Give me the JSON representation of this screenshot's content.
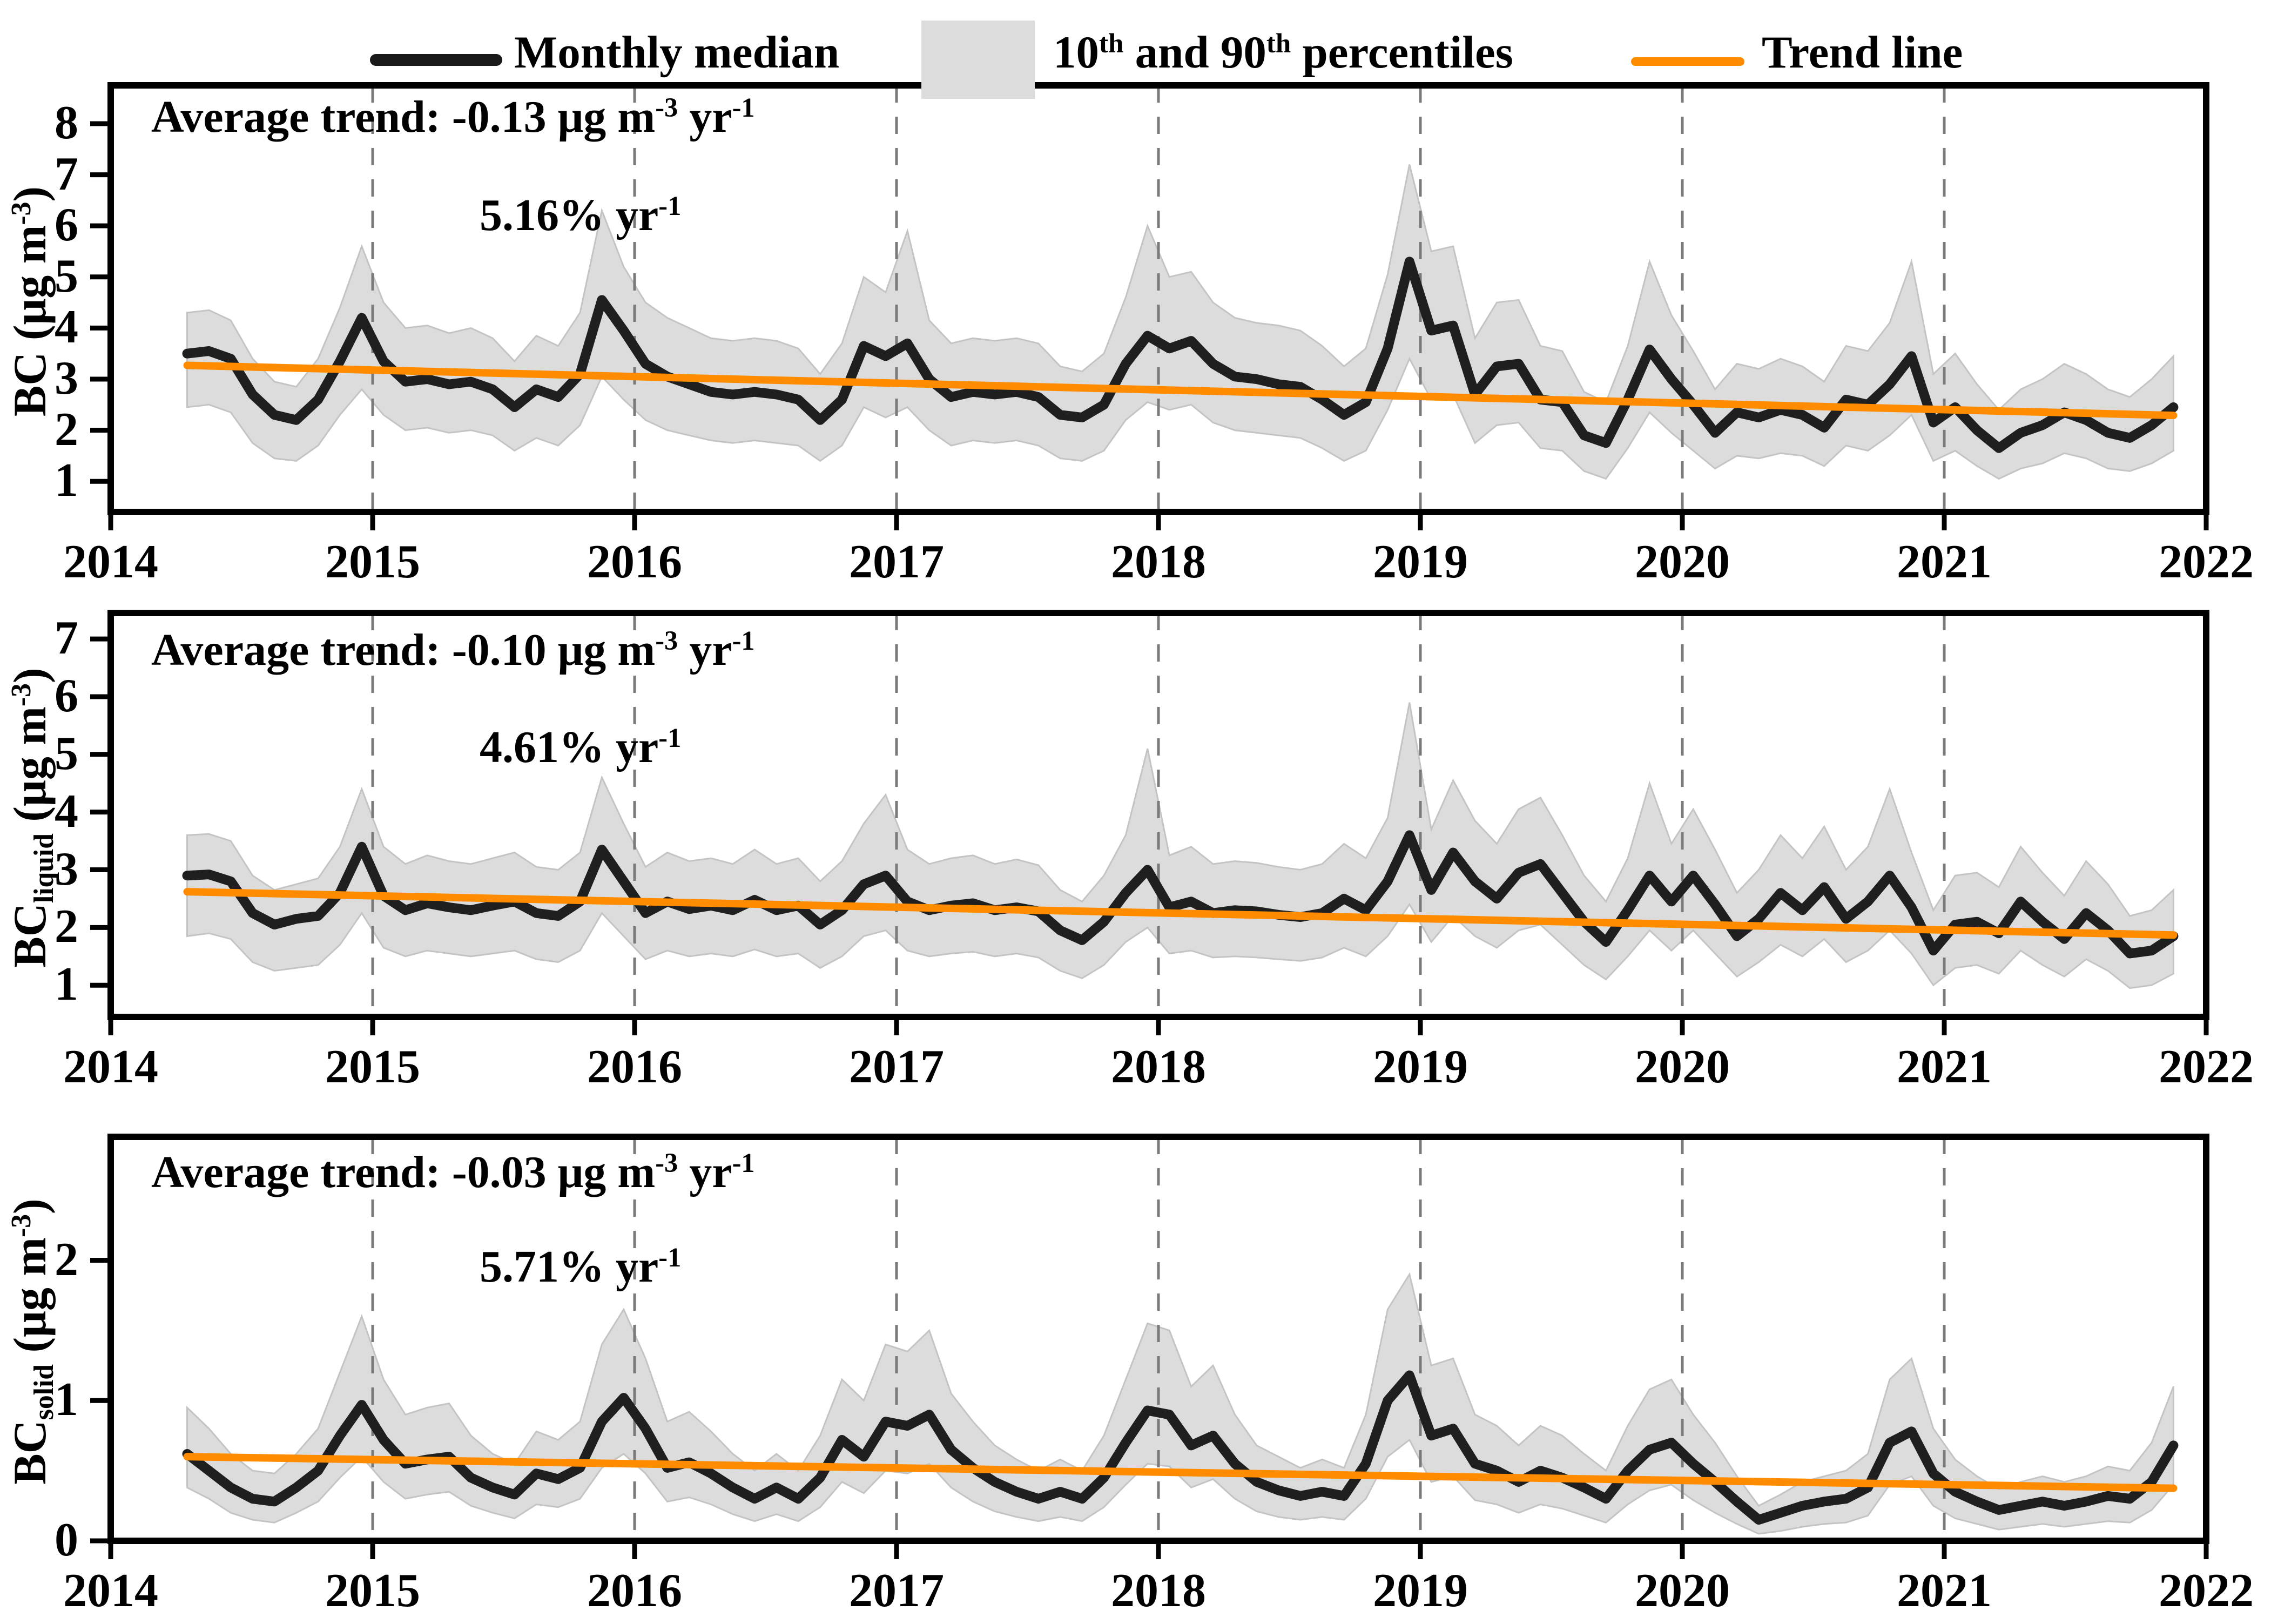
{
  "colors": {
    "median": "#1f1f1f",
    "band": "#dcdcdc",
    "band_edge": "#c4c4c4",
    "trend": "#ff8c00",
    "grid": "#7a7a7a",
    "axis": "#000000"
  },
  "legend": {
    "items": [
      {
        "name": "monthly-median",
        "swatch": "line",
        "color": "#1a1a1a",
        "label_parts": [
          [
            "t",
            "Monthly median"
          ]
        ]
      },
      {
        "name": "percentiles-band",
        "swatch": "box",
        "color": "#dcdcdc",
        "label_parts": [
          [
            "t",
            "10"
          ],
          [
            "sup",
            "th"
          ],
          [
            "t",
            " and 90"
          ],
          [
            "sup",
            "th"
          ],
          [
            "t",
            " percentiles"
          ]
        ]
      },
      {
        "name": "trend-line",
        "swatch": "line",
        "color": "#ff8c00",
        "label_parts": [
          [
            "t",
            "Trend line"
          ]
        ]
      }
    ]
  },
  "chart_data": [
    {
      "type": "line",
      "name": "BC",
      "ylabel_parts": [
        [
          "t",
          "BC ("
        ],
        [
          "t",
          "μg m"
        ],
        [
          "sup",
          "-3"
        ],
        [
          "t",
          ")"
        ]
      ],
      "trend_annotation_parts": [
        [
          "t",
          "Average trend: -0.13 μg m"
        ],
        [
          "sup",
          "-3"
        ],
        [
          "t",
          " yr"
        ],
        [
          "sup",
          "-1"
        ]
      ],
      "percent_annotation_parts": [
        [
          "t",
          "5.16% yr"
        ],
        [
          "sup",
          "-1"
        ]
      ],
      "xlim": [
        2014,
        2022
      ],
      "ylim": [
        0.4,
        8.75
      ],
      "yticks": [
        1,
        2,
        3,
        4,
        5,
        6,
        7,
        8
      ],
      "xticks": [
        2014,
        2015,
        2016,
        2017,
        2018,
        2019,
        2020,
        2021,
        2022
      ],
      "xgrid": [
        2015,
        2016,
        2017,
        2018,
        2019,
        2020,
        2021
      ],
      "x_start": 2014.2917,
      "x_step": 0.08333,
      "median": [
        3.5,
        3.55,
        3.4,
        2.7,
        2.3,
        2.2,
        2.6,
        3.35,
        4.2,
        3.35,
        2.95,
        3.0,
        2.9,
        2.95,
        2.8,
        2.45,
        2.8,
        2.65,
        3.1,
        4.55,
        3.95,
        3.3,
        3.05,
        2.9,
        2.75,
        2.7,
        2.75,
        2.7,
        2.6,
        2.2,
        2.6,
        3.65,
        3.45,
        3.7,
        3.0,
        2.65,
        2.75,
        2.7,
        2.75,
        2.65,
        2.3,
        2.25,
        2.5,
        3.3,
        3.85,
        3.6,
        3.75,
        3.3,
        3.05,
        3.0,
        2.9,
        2.85,
        2.6,
        2.3,
        2.55,
        3.6,
        5.3,
        3.95,
        4.05,
        2.7,
        3.25,
        3.3,
        2.6,
        2.55,
        1.9,
        1.75,
        2.6,
        3.58,
        3.0,
        2.5,
        1.95,
        2.35,
        2.25,
        2.4,
        2.3,
        2.05,
        2.6,
        2.5,
        2.9,
        3.45,
        2.15,
        2.45,
        2.0,
        1.65,
        1.95,
        2.1,
        2.35,
        2.2,
        1.95,
        1.85,
        2.1,
        2.45
      ],
      "p10": [
        2.45,
        2.5,
        2.35,
        1.75,
        1.45,
        1.4,
        1.7,
        2.3,
        2.8,
        2.3,
        2.0,
        2.05,
        1.95,
        2.0,
        1.9,
        1.6,
        1.85,
        1.7,
        2.1,
        3.05,
        2.6,
        2.2,
        2.0,
        1.9,
        1.8,
        1.75,
        1.8,
        1.75,
        1.7,
        1.4,
        1.7,
        2.45,
        2.25,
        2.45,
        2.0,
        1.7,
        1.8,
        1.75,
        1.8,
        1.7,
        1.45,
        1.4,
        1.6,
        2.2,
        2.55,
        2.4,
        2.5,
        2.15,
        2.0,
        1.95,
        1.9,
        1.85,
        1.65,
        1.4,
        1.6,
        2.4,
        3.4,
        2.6,
        2.7,
        1.75,
        2.1,
        2.15,
        1.65,
        1.6,
        1.2,
        1.05,
        1.65,
        2.35,
        1.95,
        1.6,
        1.25,
        1.5,
        1.45,
        1.55,
        1.5,
        1.3,
        1.7,
        1.6,
        1.9,
        2.3,
        1.4,
        1.6,
        1.3,
        1.05,
        1.25,
        1.35,
        1.55,
        1.45,
        1.25,
        1.2,
        1.35,
        1.6
      ],
      "p90": [
        4.3,
        4.35,
        4.15,
        3.4,
        2.95,
        2.85,
        3.4,
        4.4,
        5.6,
        4.5,
        4.0,
        4.05,
        3.9,
        4.0,
        3.8,
        3.35,
        3.85,
        3.65,
        4.3,
        6.3,
        5.2,
        4.5,
        4.2,
        4.0,
        3.8,
        3.75,
        3.8,
        3.75,
        3.6,
        3.1,
        3.7,
        5.0,
        4.7,
        5.9,
        4.15,
        3.7,
        3.8,
        3.75,
        3.8,
        3.7,
        3.25,
        3.15,
        3.5,
        4.6,
        6.0,
        5.0,
        5.1,
        4.5,
        4.2,
        4.1,
        4.05,
        3.95,
        3.65,
        3.25,
        3.6,
        5.05,
        7.2,
        5.5,
        5.6,
        3.8,
        4.5,
        4.55,
        3.65,
        3.55,
        2.75,
        2.55,
        3.65,
        5.3,
        4.25,
        3.55,
        2.8,
        3.3,
        3.2,
        3.4,
        3.25,
        2.95,
        3.65,
        3.55,
        4.1,
        5.3,
        3.1,
        3.5,
        2.9,
        2.4,
        2.8,
        3.0,
        3.3,
        3.1,
        2.8,
        2.65,
        3.0,
        3.45
      ],
      "trend": {
        "x1": 2014.2917,
        "v1": 3.27,
        "x2": 2021.875,
        "v2": 2.29
      }
    },
    {
      "type": "line",
      "name": "BC_liquid",
      "ylabel_parts": [
        [
          "t",
          "BC"
        ],
        [
          "sub",
          "liquid"
        ],
        [
          "t",
          " ("
        ],
        [
          "t",
          "μg m"
        ],
        [
          "sup",
          "-3"
        ],
        [
          "t",
          ")"
        ]
      ],
      "trend_annotation_parts": [
        [
          "t",
          "Average trend: -0.10 μg m"
        ],
        [
          "sup",
          "-3"
        ],
        [
          "t",
          " yr"
        ],
        [
          "sup",
          "-1"
        ]
      ],
      "percent_annotation_parts": [
        [
          "t",
          "4.61% yr"
        ],
        [
          "sup",
          "-1"
        ]
      ],
      "xlim": [
        2014,
        2022
      ],
      "ylim": [
        0.45,
        7.45
      ],
      "yticks": [
        1,
        2,
        3,
        4,
        5,
        6,
        7
      ],
      "xticks": [
        2014,
        2015,
        2016,
        2017,
        2018,
        2019,
        2020,
        2021,
        2022
      ],
      "xgrid": [
        2015,
        2016,
        2017,
        2018,
        2019,
        2020,
        2021
      ],
      "x_start": 2014.2917,
      "x_step": 0.08333,
      "median": [
        2.9,
        2.92,
        2.8,
        2.25,
        2.05,
        2.15,
        2.2,
        2.6,
        3.4,
        2.55,
        2.3,
        2.42,
        2.35,
        2.3,
        2.38,
        2.45,
        2.25,
        2.2,
        2.45,
        3.35,
        2.8,
        2.25,
        2.45,
        2.32,
        2.38,
        2.3,
        2.48,
        2.3,
        2.38,
        2.05,
        2.3,
        2.75,
        2.9,
        2.45,
        2.3,
        2.38,
        2.42,
        2.3,
        2.35,
        2.28,
        1.95,
        1.78,
        2.1,
        2.6,
        3.0,
        2.35,
        2.45,
        2.25,
        2.3,
        2.28,
        2.22,
        2.18,
        2.25,
        2.5,
        2.3,
        2.8,
        3.6,
        2.65,
        3.3,
        2.8,
        2.5,
        2.95,
        3.1,
        2.6,
        2.1,
        1.75,
        2.3,
        2.9,
        2.45,
        2.9,
        2.4,
        1.85,
        2.15,
        2.6,
        2.3,
        2.7,
        2.15,
        2.45,
        2.9,
        2.35,
        1.6,
        2.05,
        2.1,
        1.9,
        2.45,
        2.1,
        1.8,
        2.25,
        1.95,
        1.55,
        1.6,
        1.85
      ],
      "p10": [
        1.85,
        1.9,
        1.8,
        1.4,
        1.25,
        1.3,
        1.35,
        1.7,
        2.25,
        1.65,
        1.5,
        1.6,
        1.55,
        1.5,
        1.55,
        1.6,
        1.45,
        1.4,
        1.6,
        2.25,
        1.85,
        1.45,
        1.6,
        1.5,
        1.55,
        1.5,
        1.62,
        1.5,
        1.55,
        1.3,
        1.5,
        1.85,
        1.95,
        1.6,
        1.5,
        1.55,
        1.58,
        1.5,
        1.55,
        1.48,
        1.25,
        1.12,
        1.35,
        1.75,
        2.0,
        1.55,
        1.6,
        1.48,
        1.5,
        1.48,
        1.45,
        1.42,
        1.48,
        1.65,
        1.5,
        1.85,
        2.4,
        1.75,
        2.2,
        1.85,
        1.65,
        1.95,
        2.05,
        1.7,
        1.35,
        1.1,
        1.5,
        1.95,
        1.6,
        1.95,
        1.55,
        1.15,
        1.4,
        1.7,
        1.5,
        1.8,
        1.4,
        1.6,
        1.95,
        1.55,
        1.0,
        1.3,
        1.35,
        1.2,
        1.6,
        1.35,
        1.15,
        1.45,
        1.25,
        0.95,
        1.0,
        1.2
      ],
      "p90": [
        3.6,
        3.62,
        3.5,
        2.9,
        2.65,
        2.75,
        2.85,
        3.4,
        4.4,
        3.4,
        3.1,
        3.25,
        3.15,
        3.1,
        3.2,
        3.3,
        3.05,
        3.0,
        3.3,
        4.6,
        3.8,
        3.05,
        3.3,
        3.15,
        3.2,
        3.1,
        3.35,
        3.1,
        3.2,
        2.8,
        3.15,
        3.8,
        4.3,
        3.35,
        3.1,
        3.2,
        3.25,
        3.1,
        3.18,
        3.08,
        2.65,
        2.45,
        2.9,
        3.6,
        5.1,
        3.25,
        3.4,
        3.1,
        3.15,
        3.12,
        3.05,
        3.0,
        3.1,
        3.45,
        3.2,
        3.9,
        5.9,
        3.7,
        4.55,
        3.85,
        3.45,
        4.05,
        4.25,
        3.6,
        2.9,
        2.45,
        3.2,
        4.5,
        3.45,
        4.05,
        3.35,
        2.6,
        3.0,
        3.6,
        3.2,
        3.75,
        3.0,
        3.4,
        4.4,
        3.3,
        2.3,
        2.9,
        2.95,
        2.7,
        3.4,
        2.95,
        2.55,
        3.15,
        2.75,
        2.2,
        2.3,
        2.65
      ],
      "trend": {
        "x1": 2014.2917,
        "v1": 2.62,
        "x2": 2021.875,
        "v2": 1.87
      }
    },
    {
      "type": "line",
      "name": "BC_solid",
      "ylabel_parts": [
        [
          "t",
          "BC"
        ],
        [
          "sub",
          "solid"
        ],
        [
          "t",
          " ("
        ],
        [
          "t",
          "μg m"
        ],
        [
          "sup",
          "-3"
        ],
        [
          "t",
          ")"
        ]
      ],
      "trend_annotation_parts": [
        [
          "t",
          "Average trend: -0.03 μg m"
        ],
        [
          "sup",
          "-3"
        ],
        [
          "t",
          " yr"
        ],
        [
          "sup",
          "-1"
        ]
      ],
      "percent_annotation_parts": [
        [
          "t",
          "5.71% yr"
        ],
        [
          "sup",
          "-1"
        ]
      ],
      "xlim": [
        2014,
        2022
      ],
      "ylim": [
        0,
        2.88
      ],
      "yticks": [
        0,
        1,
        2
      ],
      "xticks": [
        2014,
        2015,
        2016,
        2017,
        2018,
        2019,
        2020,
        2021,
        2022
      ],
      "xgrid": [
        2015,
        2016,
        2017,
        2018,
        2019,
        2020,
        2021
      ],
      "x_start": 2014.2917,
      "x_step": 0.08333,
      "median": [
        0.62,
        0.5,
        0.38,
        0.3,
        0.28,
        0.38,
        0.5,
        0.75,
        0.97,
        0.72,
        0.55,
        0.58,
        0.6,
        0.45,
        0.38,
        0.33,
        0.48,
        0.44,
        0.52,
        0.85,
        1.02,
        0.8,
        0.52,
        0.56,
        0.48,
        0.38,
        0.3,
        0.38,
        0.3,
        0.45,
        0.72,
        0.6,
        0.85,
        0.82,
        0.9,
        0.65,
        0.52,
        0.42,
        0.35,
        0.3,
        0.35,
        0.3,
        0.45,
        0.7,
        0.93,
        0.9,
        0.68,
        0.75,
        0.55,
        0.42,
        0.36,
        0.32,
        0.35,
        0.32,
        0.55,
        1.0,
        1.18,
        0.75,
        0.8,
        0.55,
        0.5,
        0.42,
        0.5,
        0.45,
        0.38,
        0.3,
        0.5,
        0.65,
        0.7,
        0.55,
        0.42,
        0.28,
        0.15,
        0.2,
        0.25,
        0.28,
        0.3,
        0.38,
        0.7,
        0.78,
        0.48,
        0.35,
        0.28,
        0.22,
        0.25,
        0.28,
        0.25,
        0.28,
        0.32,
        0.3,
        0.42,
        0.68
      ],
      "p10": [
        0.38,
        0.3,
        0.2,
        0.15,
        0.13,
        0.2,
        0.28,
        0.45,
        0.6,
        0.42,
        0.3,
        0.33,
        0.35,
        0.25,
        0.2,
        0.16,
        0.26,
        0.24,
        0.3,
        0.52,
        0.62,
        0.48,
        0.28,
        0.31,
        0.26,
        0.19,
        0.14,
        0.19,
        0.14,
        0.24,
        0.42,
        0.34,
        0.5,
        0.48,
        0.55,
        0.38,
        0.28,
        0.21,
        0.17,
        0.14,
        0.17,
        0.14,
        0.24,
        0.4,
        0.55,
        0.53,
        0.38,
        0.44,
        0.3,
        0.21,
        0.17,
        0.15,
        0.17,
        0.15,
        0.3,
        0.6,
        0.72,
        0.42,
        0.46,
        0.29,
        0.26,
        0.2,
        0.26,
        0.23,
        0.18,
        0.13,
        0.26,
        0.36,
        0.4,
        0.29,
        0.2,
        0.12,
        0.05,
        0.07,
        0.1,
        0.12,
        0.13,
        0.18,
        0.4,
        0.46,
        0.25,
        0.16,
        0.12,
        0.08,
        0.1,
        0.12,
        0.1,
        0.12,
        0.14,
        0.13,
        0.22,
        0.4
      ],
      "p90": [
        0.95,
        0.8,
        0.62,
        0.5,
        0.48,
        0.62,
        0.8,
        1.2,
        1.6,
        1.15,
        0.9,
        0.95,
        0.98,
        0.75,
        0.62,
        0.55,
        0.78,
        0.72,
        0.85,
        1.4,
        1.65,
        1.3,
        0.85,
        0.92,
        0.78,
        0.62,
        0.5,
        0.62,
        0.5,
        0.75,
        1.15,
        1.0,
        1.4,
        1.35,
        1.5,
        1.05,
        0.85,
        0.68,
        0.58,
        0.5,
        0.58,
        0.5,
        0.75,
        1.15,
        1.55,
        1.5,
        1.1,
        1.25,
        0.9,
        0.68,
        0.6,
        0.52,
        0.58,
        0.52,
        0.9,
        1.65,
        1.9,
        1.25,
        1.3,
        0.9,
        0.82,
        0.68,
        0.82,
        0.75,
        0.62,
        0.5,
        0.82,
        1.08,
        1.15,
        0.9,
        0.7,
        0.46,
        0.25,
        0.33,
        0.42,
        0.46,
        0.5,
        0.62,
        1.15,
        1.3,
        0.8,
        0.58,
        0.46,
        0.37,
        0.42,
        0.46,
        0.42,
        0.46,
        0.53,
        0.5,
        0.7,
        1.1
      ],
      "trend": {
        "x1": 2014.2917,
        "v1": 0.6,
        "x2": 2021.875,
        "v2": 0.375
      }
    }
  ]
}
